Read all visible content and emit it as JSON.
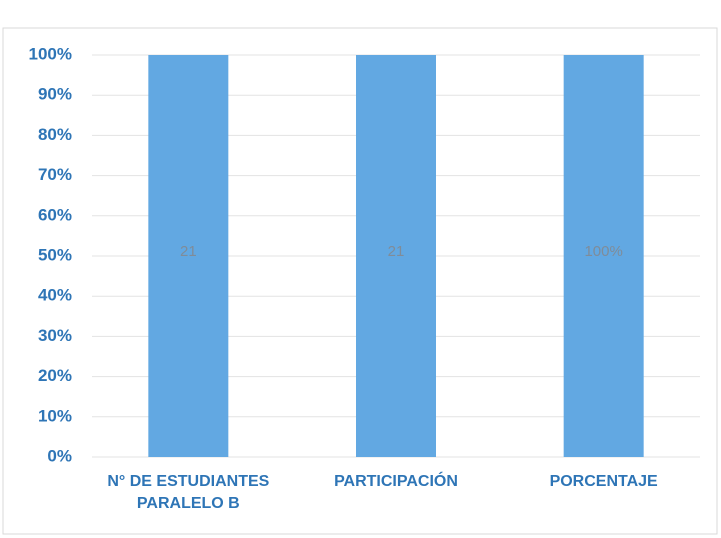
{
  "chart_data": {
    "type": "bar",
    "stacking": "percent",
    "categories": [
      "N° DE ESTUDIANTES PARALELO B",
      "PARTICIPACIÓN",
      "PORCENTAJE"
    ],
    "values": [
      21,
      21,
      100
    ],
    "value_labels": [
      "21",
      "21",
      "100%"
    ],
    "color": "#62a8e2",
    "ylim": [
      0,
      100
    ],
    "yticks": [
      {
        "value": 0,
        "label": "0%"
      },
      {
        "value": 10,
        "label": "10%"
      },
      {
        "value": 20,
        "label": "20%"
      },
      {
        "value": 30,
        "label": "30%"
      },
      {
        "value": 40,
        "label": "40%"
      },
      {
        "value": 50,
        "label": "50%"
      },
      {
        "value": 60,
        "label": "60%"
      },
      {
        "value": 70,
        "label": "70%"
      },
      {
        "value": 80,
        "label": "80%"
      },
      {
        "value": 90,
        "label": "90%"
      },
      {
        "value": 100,
        "label": "100%"
      }
    ],
    "grid": true
  }
}
